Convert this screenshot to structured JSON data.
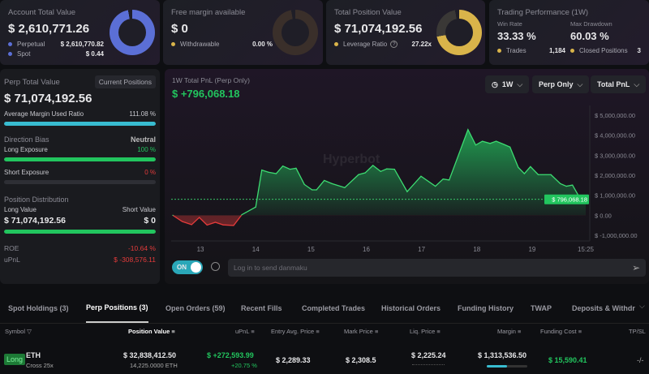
{
  "cards": {
    "account": {
      "title": "Account Total Value",
      "value": "$ 2,610,771.26",
      "rows": [
        {
          "label": "Perpetual",
          "value": "$ 2,610,770.82",
          "color": "#5b6fd6"
        },
        {
          "label": "Spot",
          "value": "$ 0.44",
          "color": "#5b6fd6"
        }
      ]
    },
    "free": {
      "title": "Free margin available",
      "value": "$ 0",
      "rows": [
        {
          "label": "Withdrawable",
          "value": "0.00 %",
          "color": "#d9b44a"
        }
      ]
    },
    "position": {
      "title": "Total Position Value",
      "value": "$ 71,074,192.56",
      "leverage_label": "Leverage Ratio",
      "leverage_value": "27.22x"
    },
    "performance": {
      "title": "Trading Performance (1W)",
      "win_rate_label": "Win Rate",
      "win_rate": "33.33 %",
      "drawdown_label": "Max Drawdown",
      "drawdown": "60.03 %",
      "trades_label": "Trades",
      "trades": "1,184",
      "closed_label": "Closed Positions",
      "closed": "3"
    }
  },
  "perp": {
    "title": "Perp Total Value",
    "button": "Current Positions",
    "value": "$ 71,074,192.56",
    "margin_label": "Average Margin Used Ratio",
    "margin_value": "111.08 %",
    "margin_pct": 100,
    "bias_label": "Direction Bias",
    "bias_value": "Neutral",
    "long_label": "Long Exposure",
    "long_value": "100 %",
    "long_pct": 100,
    "short_label": "Short Exposure",
    "short_value": "0 %",
    "short_pct": 0,
    "dist_label": "Position Distribution",
    "long_value_label": "Long Value",
    "short_value_label": "Short Value",
    "long_amount": "$ 71,074,192.56",
    "short_amount": "$ 0",
    "roe_label": "ROE",
    "roe": "-10.64 %",
    "upnl_label": "uPnL",
    "upnl": "$ -308,576.11"
  },
  "pnl": {
    "title": "1W Total PnL (Perp Only)",
    "value": "$ +796,068.18",
    "period": "1W",
    "scope": "Perp Only",
    "metric": "Total PnL",
    "watermark": "Hyperbot",
    "toggle": "ON",
    "danmaku_placeholder": "Log in to send danmaku"
  },
  "chart_data": {
    "type": "area",
    "xlabel": "",
    "ylabel": "",
    "ylim": [
      -1000000,
      5000000
    ],
    "y_ticks": [
      "$ 5,000,000.00",
      "$ 4,000,000.00",
      "$ 3,000,000.00",
      "$ 2,000,000.00",
      "$ 1,000,000.00",
      "$ 0.00",
      "$ -1,000,000.00"
    ],
    "y_tick_values": [
      5000000,
      4000000,
      3000000,
      2000000,
      1000000,
      0,
      -1000000
    ],
    "x_ticks": [
      "13",
      "14",
      "15",
      "16",
      "17",
      "18",
      "19",
      "15:25"
    ],
    "x_tick_values": [
      13,
      14,
      15,
      16,
      17,
      18,
      19,
      19.97
    ],
    "current_label": "$ 796,068.18",
    "current_value": 796068.18,
    "x": [
      12.5,
      12.67,
      12.84,
      12.98,
      13.12,
      13.27,
      13.41,
      13.6,
      13.75,
      14.0,
      14.11,
      14.23,
      14.37,
      14.49,
      14.62,
      14.73,
      14.88,
      15.02,
      15.1,
      15.24,
      15.38,
      15.61,
      15.86,
      15.98,
      16.12,
      16.26,
      16.37,
      16.51,
      16.74,
      16.99,
      17.25,
      17.39,
      17.5,
      17.84,
      17.98,
      18.1,
      18.24,
      18.35,
      18.49,
      18.6,
      18.75,
      18.86,
      18.97,
      19.11,
      19.34,
      19.51,
      19.62,
      19.73,
      19.88,
      19.97
    ],
    "y": [
      0,
      -310000,
      -470000,
      -110000,
      -490000,
      -350000,
      -480000,
      -510000,
      30000,
      410000,
      2260000,
      2150000,
      2080000,
      2460000,
      2300000,
      2350000,
      1540000,
      1270000,
      1270000,
      1740000,
      1580000,
      1380000,
      2030000,
      2120000,
      2490000,
      2190000,
      2320000,
      2300000,
      1180000,
      1950000,
      1450000,
      1810000,
      1760000,
      4280000,
      3510000,
      3700000,
      3590000,
      3700000,
      3540000,
      3410000,
      2390000,
      2080000,
      2430000,
      2030000,
      2030000,
      1580000,
      1450000,
      1510000,
      780000,
      796068.18
    ]
  },
  "tabs": [
    "Spot Holdings (3)",
    "Perp Positions (3)",
    "Open Orders (59)",
    "Recent Fills",
    "Completed Trades",
    "Historical Orders",
    "Funding History",
    "TWAP",
    "Deposits & Withdra"
  ],
  "active_tab": 1,
  "table": {
    "headers": [
      "Symbol",
      "Position Value",
      "uPnL",
      "Entry Avg. Price",
      "Mark Price",
      "Liq. Price",
      "Margin",
      "Funding Cost",
      "TP/SL"
    ],
    "rows": [
      {
        "side": "Long",
        "symbol": "ETH",
        "mode": "Cross 25x",
        "position_value": "$ 32,838,412.50",
        "position_size": "14,225.0000 ETH",
        "upnl": "$ +272,593.99",
        "upnl_pct": "+20.75 %",
        "entry": "$ 2,289.33",
        "mark": "$ 2,308.5",
        "liq": "$ 2,225.24",
        "margin": "$ 1,313,536.50",
        "funding": "$ 15,590.41",
        "tpsl": "-/-"
      }
    ]
  }
}
